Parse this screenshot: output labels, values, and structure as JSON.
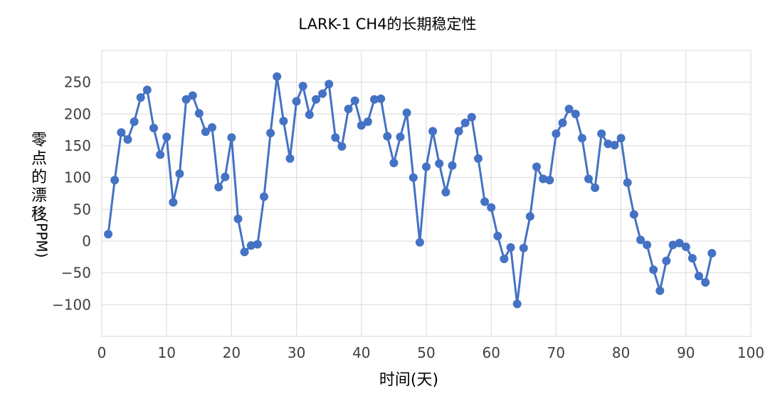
{
  "chart_data": {
    "type": "line",
    "title": "LARK-1 CH4的长期稳定性",
    "xlabel": "时间(天)",
    "ylabel_text": "零点的漂移",
    "ylabel_unit": "(PPM)",
    "xlim": [
      0,
      100
    ],
    "ylim": [
      -150,
      300
    ],
    "xticks": [
      0,
      10,
      20,
      30,
      40,
      50,
      60,
      70,
      80,
      90,
      100
    ],
    "yticks": [
      -100,
      -50,
      0,
      50,
      100,
      150,
      200,
      250
    ],
    "ytick_labels": [
      "−100",
      "−50",
      "0",
      "50",
      "100",
      "150",
      "200",
      "250"
    ],
    "grid": true,
    "legend": "none",
    "series": [
      {
        "color": "#4472C4",
        "x": [
          1,
          2,
          3,
          4,
          5,
          6,
          7,
          8,
          9,
          10,
          11,
          12,
          13,
          14,
          15,
          16,
          17,
          18,
          19,
          20,
          21,
          22,
          23,
          24,
          25,
          26,
          27,
          28,
          29,
          30,
          31,
          32,
          33,
          34,
          35,
          36,
          37,
          38,
          39,
          40,
          41,
          42,
          43,
          44,
          45,
          46,
          47,
          48,
          49,
          50,
          51,
          52,
          53,
          54,
          55,
          56,
          57,
          58,
          59,
          60,
          61,
          62,
          63,
          64,
          65,
          66,
          67,
          68,
          69,
          70,
          71,
          72,
          73,
          74,
          75,
          76,
          77,
          78,
          79,
          80,
          81,
          82,
          83,
          84,
          85,
          86,
          87,
          88,
          89,
          90,
          91,
          92,
          93,
          94
        ],
        "y": [
          11,
          96,
          171,
          160,
          188,
          226,
          238,
          178,
          136,
          164,
          61,
          106,
          223,
          229,
          201,
          172,
          179,
          85,
          101,
          163,
          35,
          -17,
          -7,
          -5,
          70,
          170,
          259,
          189,
          130,
          220,
          244,
          199,
          223,
          232,
          247,
          163,
          149,
          208,
          221,
          182,
          188,
          223,
          224,
          165,
          123,
          164,
          202,
          100,
          -2,
          117,
          173,
          122,
          77,
          119,
          173,
          186,
          195,
          130,
          62,
          53,
          8,
          -28,
          -10,
          -99,
          -11,
          39,
          117,
          98,
          96,
          169,
          186,
          208,
          200,
          162,
          98,
          84,
          169,
          153,
          151,
          162,
          92,
          42,
          2,
          -6,
          -45,
          -78,
          -31,
          -6,
          -3,
          -9,
          -27,
          -55,
          -65,
          -19
        ]
      }
    ]
  }
}
